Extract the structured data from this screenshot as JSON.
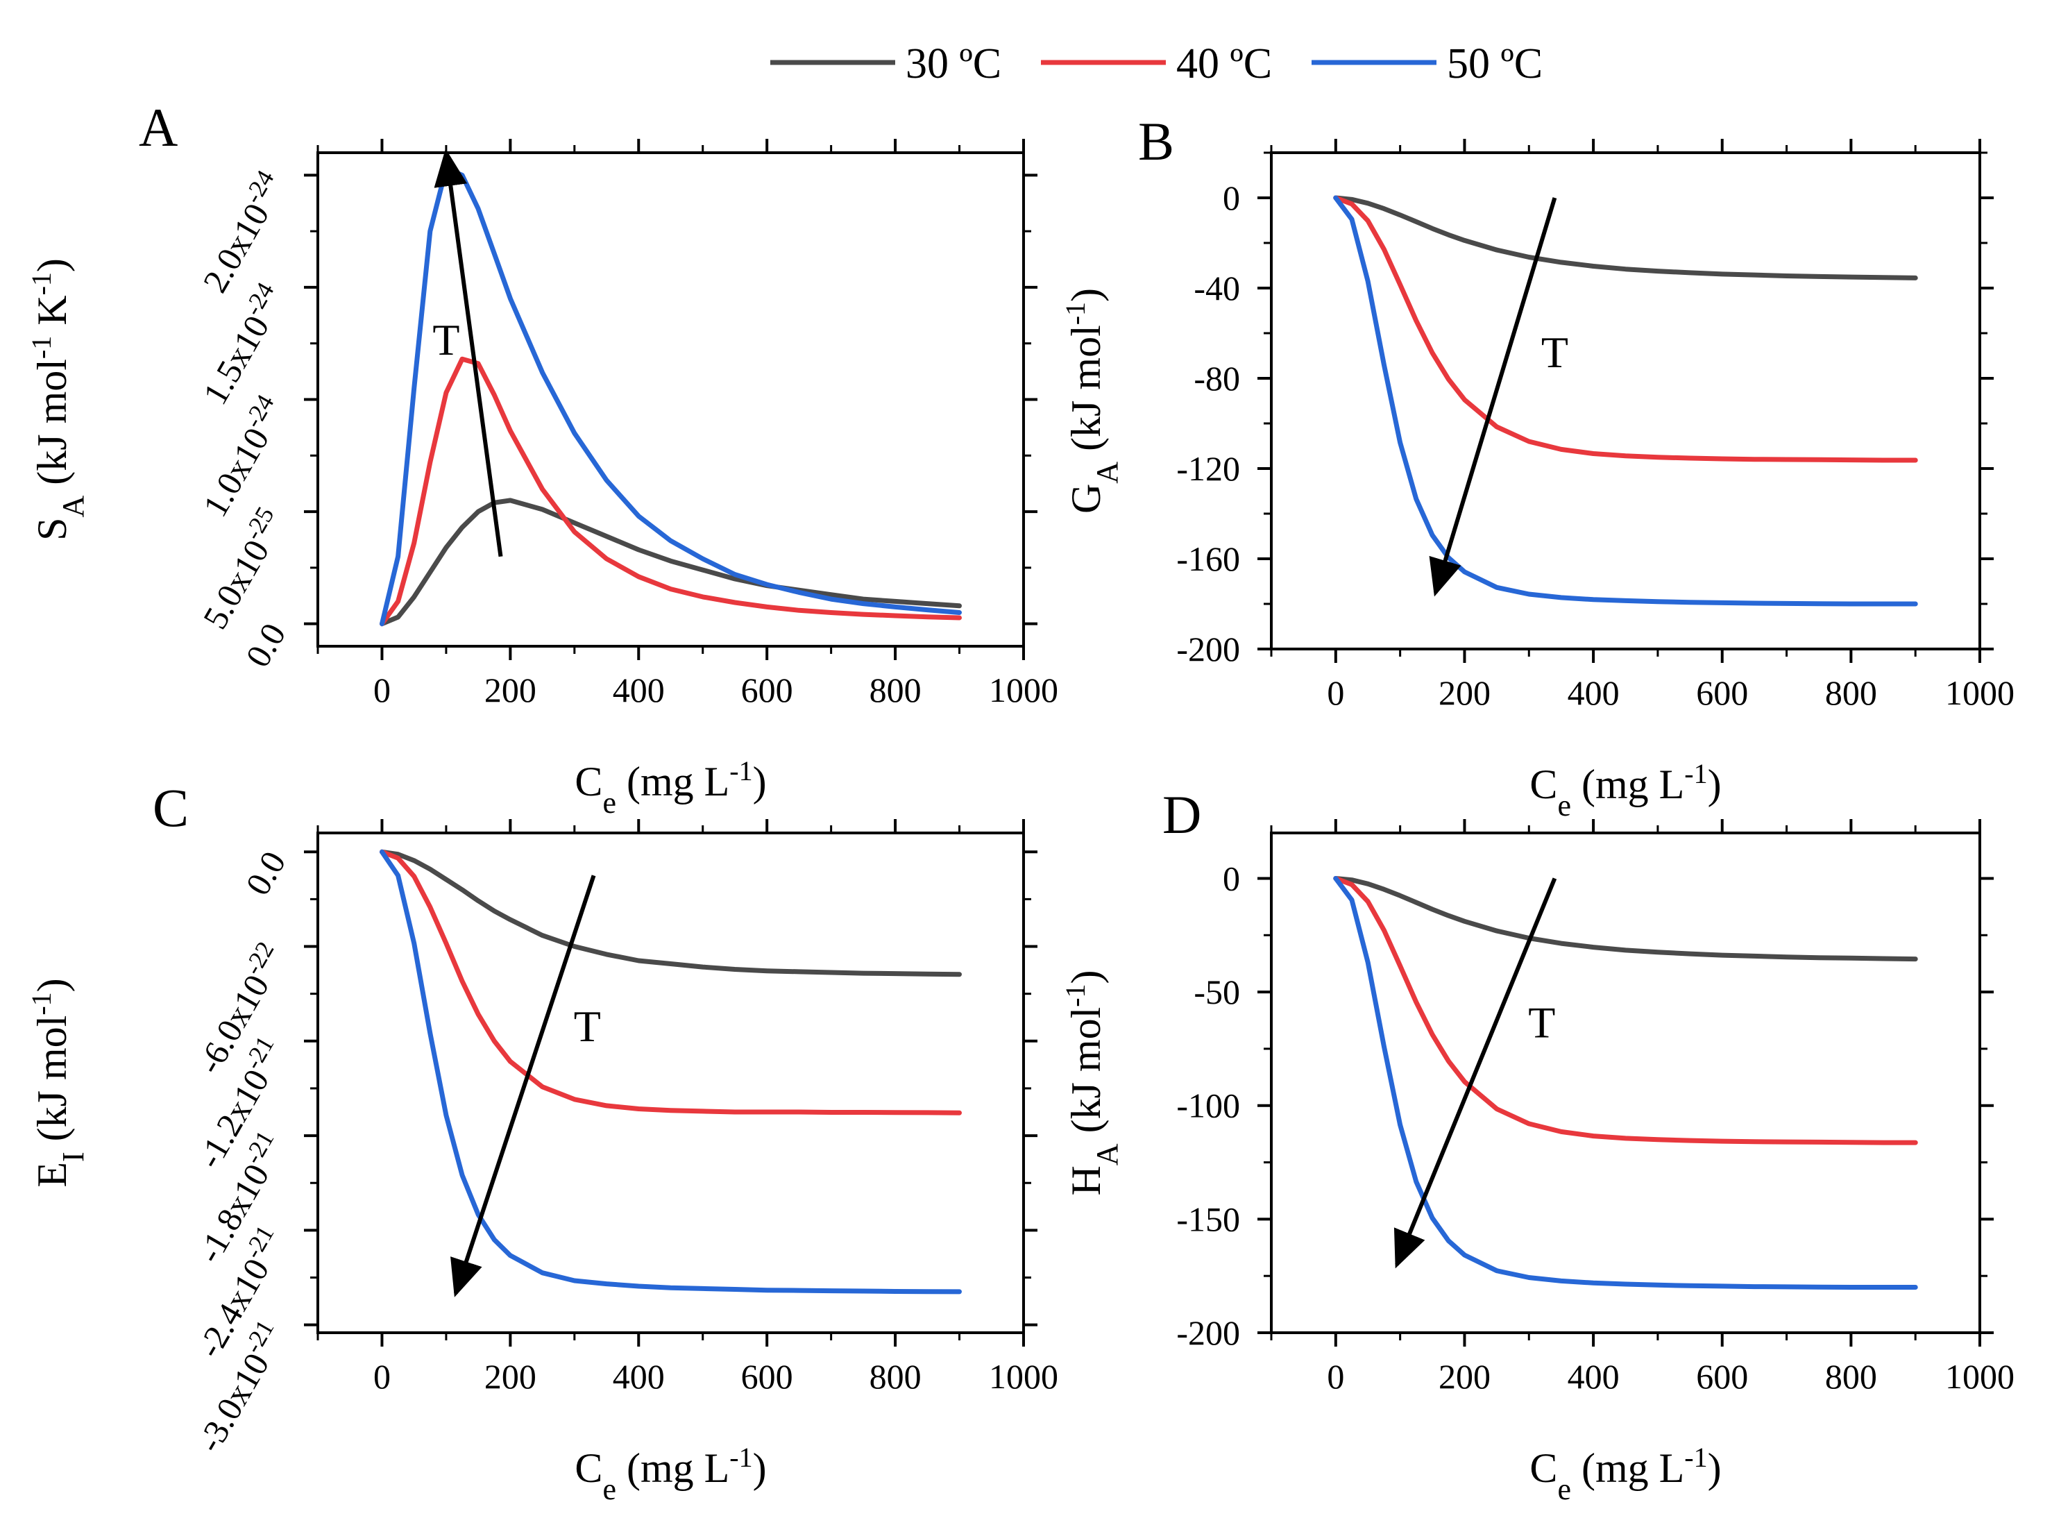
{
  "legend": {
    "series": [
      {
        "name": "30 ºC",
        "color": "#4a4a4a"
      },
      {
        "name": "40 ºC",
        "color": "#e8383d"
      },
      {
        "name": "50 ºC",
        "color": "#2767d6"
      }
    ]
  },
  "chart_data": [
    {
      "panel": "A",
      "type": "line",
      "ylabel_main": "S",
      "ylabel_sub": "A",
      "ylabel_units_before": "(kJ mol",
      "ylabel_units_sup": "-1",
      "ylabel_units_mid": " K",
      "ylabel_units_sup2": "-1",
      "ylabel_units_after": ")",
      "xlabel_main": "C",
      "xlabel_sub": "e",
      "xlabel_units_before": "(mg L",
      "xlabel_units_sup": "-1",
      "xlabel_units_after": ")",
      "xlim": [
        -100,
        1000
      ],
      "ylim": [
        -1e-25,
        2.1e-24
      ],
      "xticks": [
        0,
        200,
        400,
        600,
        800,
        1000
      ],
      "yticks": [
        {
          "value": 0,
          "mant": "0.0",
          "exp": ""
        },
        {
          "value": 5e-25,
          "mant": "5.0x10",
          "exp": "-25"
        },
        {
          "value": 1e-24,
          "mant": "1.0x10",
          "exp": "-24"
        },
        {
          "value": 1.5e-24,
          "mant": "1.5x10",
          "exp": "-24"
        },
        {
          "value": 2e-24,
          "mant": "2.0x10",
          "exp": "-24"
        }
      ],
      "annotation": {
        "text": "T",
        "x": 100,
        "y": 1.2e-24
      },
      "arrow": {
        "from": [
          185,
          3e-25
        ],
        "to": [
          100,
          2.1e-24
        ]
      },
      "series": [
        {
          "name": "30 ºC",
          "x": [
            0,
            25,
            50,
            75,
            100,
            125,
            150,
            175,
            200,
            250,
            300,
            350,
            400,
            450,
            500,
            550,
            600,
            650,
            700,
            750,
            800,
            850,
            900
          ],
          "y": [
            0,
            3e-26,
            1.2e-25,
            2.3e-25,
            3.4e-25,
            4.3e-25,
            5e-25,
            5.4e-25,
            5.5e-25,
            5.1e-25,
            4.5e-25,
            3.9e-25,
            3.3e-25,
            2.8e-25,
            2.4e-25,
            2e-25,
            1.7e-25,
            1.5e-25,
            1.3e-25,
            1.1e-25,
            1e-25,
            9e-26,
            8e-26
          ]
        },
        {
          "name": "40 ºC",
          "x": [
            0,
            25,
            50,
            75,
            100,
            125,
            150,
            175,
            200,
            250,
            300,
            350,
            400,
            450,
            500,
            550,
            600,
            650,
            700,
            750,
            800,
            850,
            900
          ],
          "y": [
            0,
            1e-25,
            3.6e-25,
            7.2e-25,
            1.03e-24,
            1.18e-24,
            1.16e-24,
            1.02e-24,
            8.6e-25,
            6e-25,
            4.1e-25,
            2.9e-25,
            2.1e-25,
            1.55e-25,
            1.2e-25,
            9.5e-26,
            7.5e-26,
            6e-26,
            5e-26,
            4.2e-26,
            3.6e-26,
            3.1e-26,
            2.7e-26
          ]
        },
        {
          "name": "50 ºC",
          "x": [
            0,
            25,
            50,
            75,
            100,
            125,
            150,
            175,
            200,
            250,
            300,
            350,
            400,
            450,
            500,
            550,
            600,
            650,
            700,
            750,
            800,
            850,
            900
          ],
          "y": [
            0,
            3e-25,
            1.05e-24,
            1.75e-24,
            2.03e-24,
            2e-24,
            1.85e-24,
            1.65e-24,
            1.45e-24,
            1.12e-24,
            8.5e-25,
            6.4e-25,
            4.8e-25,
            3.7e-25,
            2.9e-25,
            2.2e-25,
            1.75e-25,
            1.4e-25,
            1.1e-25,
            9e-26,
            7.5e-26,
            6.2e-26,
            5e-26
          ]
        }
      ]
    },
    {
      "panel": "B",
      "type": "line",
      "ylabel_main": "G",
      "ylabel_sub": "A",
      "ylabel_units_before": "(kJ mol",
      "ylabel_units_sup": "-1",
      "ylabel_units_after": ")",
      "xlabel_main": "C",
      "xlabel_sub": "e",
      "xlabel_units_before": "(mg L",
      "xlabel_units_sup": "-1",
      "xlabel_units_after": ")",
      "xlim": [
        -100,
        1000
      ],
      "ylim": [
        -200,
        20
      ],
      "xticks": [
        0,
        200,
        400,
        600,
        800,
        1000
      ],
      "yticks": [
        {
          "value": 0,
          "label": "0"
        },
        {
          "value": -40,
          "label": "-40"
        },
        {
          "value": -80,
          "label": "-80"
        },
        {
          "value": -120,
          "label": "-120"
        },
        {
          "value": -160,
          "label": "-160"
        },
        {
          "value": -200,
          "label": "-200"
        }
      ],
      "annotation": {
        "text": "T",
        "x": 340,
        "y": -75
      },
      "arrow": {
        "from": [
          340,
          0
        ],
        "to": [
          155,
          -175
        ]
      },
      "series": [
        {
          "name": "30 ºC",
          "x": [
            0,
            25,
            50,
            75,
            100,
            125,
            150,
            175,
            200,
            250,
            300,
            350,
            400,
            450,
            500,
            550,
            600,
            650,
            700,
            750,
            800,
            850,
            900
          ],
          "y": [
            0,
            -0.7,
            -2.4,
            -4.8,
            -7.6,
            -10.6,
            -13.6,
            -16.4,
            -18.9,
            -23.1,
            -26.3,
            -28.6,
            -30.3,
            -31.6,
            -32.5,
            -33.2,
            -33.8,
            -34.2,
            -34.6,
            -34.9,
            -35.1,
            -35.3,
            -35.5
          ]
        },
        {
          "name": "40 ºC",
          "x": [
            0,
            25,
            50,
            75,
            100,
            125,
            150,
            175,
            200,
            250,
            300,
            350,
            400,
            450,
            500,
            550,
            600,
            650,
            700,
            750,
            800,
            850,
            900
          ],
          "y": [
            0,
            -2.7,
            -10.2,
            -22.8,
            -38.5,
            -54.5,
            -68.7,
            -80.4,
            -89.5,
            -101.5,
            -108.0,
            -111.5,
            -113.4,
            -114.4,
            -115.0,
            -115.4,
            -115.7,
            -115.9,
            -116.0,
            -116.1,
            -116.2,
            -116.3,
            -116.3
          ]
        },
        {
          "name": "50 ºC",
          "x": [
            0,
            25,
            50,
            75,
            100,
            125,
            150,
            175,
            200,
            250,
            300,
            350,
            400,
            450,
            500,
            550,
            600,
            650,
            700,
            750,
            800,
            850,
            900
          ],
          "y": [
            0,
            -9.5,
            -37.0,
            -74.0,
            -108.5,
            -133.5,
            -149.5,
            -159.5,
            -165.8,
            -172.7,
            -175.7,
            -177.2,
            -178.1,
            -178.6,
            -179.0,
            -179.3,
            -179.5,
            -179.7,
            -179.8,
            -179.9,
            -180.0,
            -180.0,
            -180.0
          ]
        }
      ]
    },
    {
      "panel": "C",
      "type": "line",
      "ylabel_main": "E",
      "ylabel_sub": "I",
      "ylabel_units_before": "(kJ mol",
      "ylabel_units_sup": "-1",
      "ylabel_units_after": ")",
      "xlabel_main": "C",
      "xlabel_sub": "e",
      "xlabel_units_before": "(mg L",
      "xlabel_units_sup": "-1",
      "xlabel_units_after": ")",
      "xlim": [
        -100,
        1000
      ],
      "ylim": [
        -3.05e-21,
        1.2e-22
      ],
      "xticks": [
        0,
        200,
        400,
        600,
        800,
        1000
      ],
      "yticks": [
        {
          "value": 0,
          "mant": "0.0",
          "exp": ""
        },
        {
          "value": -6e-22,
          "mant": "-6.0x10",
          "exp": "-22"
        },
        {
          "value": -1.2e-21,
          "mant": "-1.2x10",
          "exp": "-21"
        },
        {
          "value": -1.8e-21,
          "mant": "-1.8x10",
          "exp": "-21"
        },
        {
          "value": -2.4e-21,
          "mant": "-2.4x10",
          "exp": "-21"
        },
        {
          "value": -3e-21,
          "mant": "-3.0x10",
          "exp": "-21"
        }
      ],
      "annotation": {
        "text": "T",
        "x": 320,
        "y": -1.2e-21
      },
      "arrow": {
        "from": [
          330,
          -1.5e-22
        ],
        "to": [
          115,
          -2.8e-21
        ]
      },
      "series": [
        {
          "name": "30 ºC",
          "x": [
            0,
            25,
            50,
            75,
            100,
            125,
            150,
            175,
            200,
            250,
            300,
            350,
            400,
            450,
            500,
            550,
            600,
            650,
            700,
            750,
            800,
            850,
            900
          ],
          "y": [
            0,
            -1.5e-23,
            -5.5e-23,
            -1.1e-22,
            -1.75e-22,
            -2.4e-22,
            -3.1e-22,
            -3.75e-22,
            -4.3e-22,
            -5.3e-22,
            -6e-22,
            -6.5e-22,
            -6.9e-22,
            -7.1e-22,
            -7.3e-22,
            -7.45e-22,
            -7.55e-22,
            -7.6e-22,
            -7.65e-22,
            -7.7e-22,
            -7.72e-22,
            -7.75e-22,
            -7.77e-22
          ]
        },
        {
          "name": "40 ºC",
          "x": [
            0,
            25,
            50,
            75,
            100,
            125,
            150,
            175,
            200,
            250,
            300,
            350,
            400,
            450,
            500,
            550,
            600,
            650,
            700,
            750,
            800,
            850,
            900
          ],
          "y": [
            0,
            -4e-23,
            -1.55e-22,
            -3.5e-22,
            -5.8e-22,
            -8.2e-22,
            -1.03e-21,
            -1.2e-21,
            -1.33e-21,
            -1.49e-21,
            -1.57e-21,
            -1.61e-21,
            -1.63e-21,
            -1.64e-21,
            -1.645e-21,
            -1.65e-21,
            -1.65e-21,
            -1.65e-21,
            -1.652e-21,
            -1.652e-21,
            -1.653e-21,
            -1.654e-21,
            -1.655e-21
          ]
        },
        {
          "name": "50 ºC",
          "x": [
            0,
            25,
            50,
            75,
            100,
            125,
            150,
            175,
            200,
            250,
            300,
            350,
            400,
            450,
            500,
            550,
            600,
            650,
            700,
            750,
            800,
            850,
            900
          ],
          "y": [
            0,
            -1.5e-22,
            -5.8e-22,
            -1.15e-21,
            -1.67e-21,
            -2.05e-21,
            -2.3e-21,
            -2.46e-21,
            -2.56e-21,
            -2.67e-21,
            -2.72e-21,
            -2.74e-21,
            -2.755e-21,
            -2.765e-21,
            -2.77e-21,
            -2.775e-21,
            -2.78e-21,
            -2.782e-21,
            -2.784e-21,
            -2.786e-21,
            -2.788e-21,
            -2.789e-21,
            -2.79e-21
          ]
        }
      ]
    },
    {
      "panel": "D",
      "type": "line",
      "ylabel_main": "H",
      "ylabel_sub": "A",
      "ylabel_units_before": "(kJ mol",
      "ylabel_units_sup": "-1",
      "ylabel_units_after": ")",
      "xlabel_main": "C",
      "xlabel_sub": "e",
      "xlabel_units_before": "(mg L",
      "xlabel_units_sup": "-1",
      "xlabel_units_after": ")",
      "xlim": [
        -100,
        1000
      ],
      "ylim": [
        -200,
        20
      ],
      "xticks": [
        0,
        200,
        400,
        600,
        800,
        1000
      ],
      "yticks": [
        {
          "value": 0,
          "label": "0"
        },
        {
          "value": -50,
          "label": "-50"
        },
        {
          "value": -100,
          "label": "-100"
        },
        {
          "value": -150,
          "label": "-150"
        },
        {
          "value": -200,
          "label": "-200"
        }
      ],
      "annotation": {
        "text": "T",
        "x": 320,
        "y": -70
      },
      "arrow": {
        "from": [
          340,
          0
        ],
        "to": [
          95,
          -170
        ]
      },
      "series": [
        {
          "name": "30 ºC",
          "x": [
            0,
            25,
            50,
            75,
            100,
            125,
            150,
            175,
            200,
            250,
            300,
            350,
            400,
            450,
            500,
            550,
            600,
            650,
            700,
            750,
            800,
            850,
            900
          ],
          "y": [
            0,
            -0.7,
            -2.4,
            -4.8,
            -7.6,
            -10.6,
            -13.6,
            -16.4,
            -18.9,
            -23.1,
            -26.3,
            -28.6,
            -30.3,
            -31.6,
            -32.5,
            -33.2,
            -33.8,
            -34.2,
            -34.6,
            -34.9,
            -35.1,
            -35.3,
            -35.5
          ]
        },
        {
          "name": "40 ºC",
          "x": [
            0,
            25,
            50,
            75,
            100,
            125,
            150,
            175,
            200,
            250,
            300,
            350,
            400,
            450,
            500,
            550,
            600,
            650,
            700,
            750,
            800,
            850,
            900
          ],
          "y": [
            0,
            -2.7,
            -10.2,
            -22.8,
            -38.5,
            -54.5,
            -68.7,
            -80.4,
            -89.5,
            -101.5,
            -108.0,
            -111.5,
            -113.4,
            -114.4,
            -115.0,
            -115.4,
            -115.7,
            -115.9,
            -116.0,
            -116.1,
            -116.2,
            -116.3,
            -116.3
          ]
        },
        {
          "name": "50 ºC",
          "x": [
            0,
            25,
            50,
            75,
            100,
            125,
            150,
            175,
            200,
            250,
            300,
            350,
            400,
            450,
            500,
            550,
            600,
            650,
            700,
            750,
            800,
            850,
            900
          ],
          "y": [
            0,
            -9.5,
            -37.0,
            -74.0,
            -108.5,
            -133.5,
            -149.5,
            -159.5,
            -165.8,
            -172.7,
            -175.7,
            -177.2,
            -178.1,
            -178.6,
            -179.0,
            -179.3,
            -179.5,
            -179.7,
            -179.8,
            -179.9,
            -180.0,
            -180.0,
            -180.0
          ]
        }
      ]
    }
  ]
}
